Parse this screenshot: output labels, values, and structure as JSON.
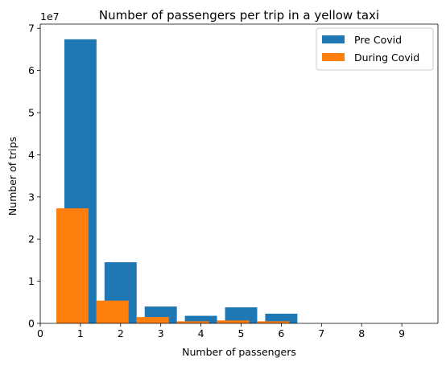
{
  "chart_data": {
    "type": "bar",
    "title": "Number of passengers per trip in a yellow taxi",
    "xlabel": "Number of passengers",
    "ylabel": "Number of trips",
    "y_offset_text": "1e7",
    "xlim": [
      0,
      9.9
    ],
    "ylim": [
      0,
      7.1
    ],
    "y_scale": 10000000,
    "x_ticks": [
      0,
      1,
      2,
      3,
      4,
      5,
      6,
      7,
      8,
      9
    ],
    "y_ticks": [
      0,
      1,
      2,
      3,
      4,
      5,
      6,
      7
    ],
    "legend_position": "top-right",
    "grid": false,
    "series": [
      {
        "name": "Pre Covid",
        "color": "#1f77b4",
        "x": [
          1,
          2,
          3,
          4,
          5,
          6
        ],
        "values": [
          67400000,
          14500000,
          4000000,
          1800000,
          3800000,
          2300000
        ]
      },
      {
        "name": "During Covid",
        "color": "#ff7f0e",
        "x": [
          0.8,
          1.8,
          2.8,
          3.8,
          4.8,
          5.8
        ],
        "values": [
          27300000,
          5400000,
          1500000,
          500000,
          700000,
          500000
        ]
      }
    ]
  }
}
